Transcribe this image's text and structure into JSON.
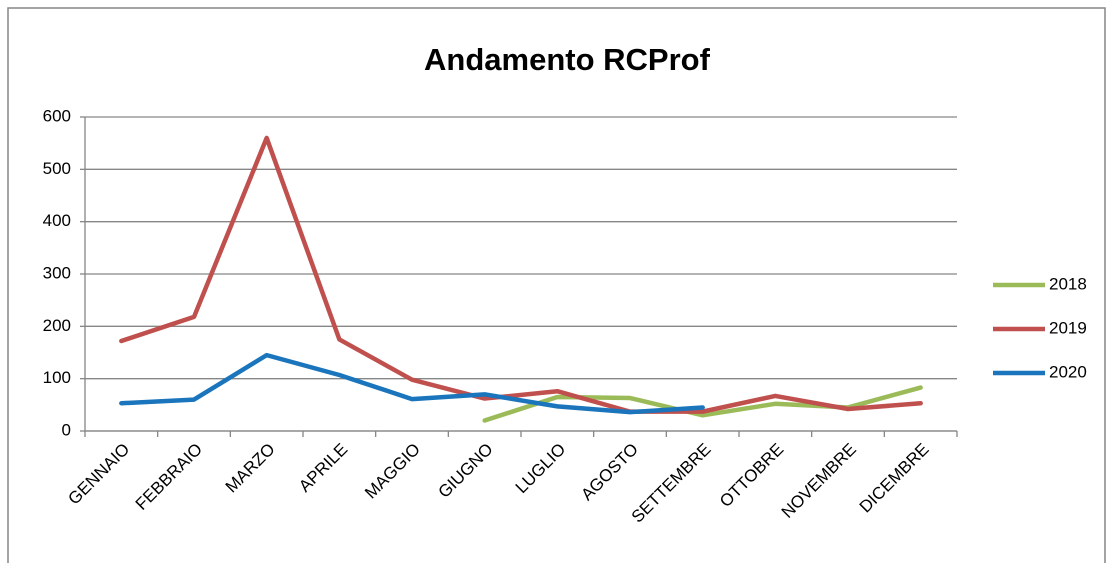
{
  "chart_data": {
    "type": "line",
    "title": "Andamento RCProf",
    "categories": [
      "GENNAIO",
      "FEBBRAIO",
      "MARZO",
      "APRILE",
      "MAGGIO",
      "GIUGNO",
      "LUGLIO",
      "AGOSTO",
      "SETTEMBRE",
      "OTTOBRE",
      "NOVEMBRE",
      "DICEMBRE"
    ],
    "series": [
      {
        "name": "2018",
        "color": "#9bbb59",
        "values": [
          null,
          null,
          null,
          null,
          null,
          20,
          65,
          63,
          30,
          52,
          45,
          83
        ]
      },
      {
        "name": "2019",
        "color": "#c0504d",
        "values": [
          172,
          218,
          560,
          175,
          98,
          62,
          76,
          37,
          37,
          67,
          42,
          53
        ]
      },
      {
        "name": "2020",
        "color": "#1a75bc",
        "values": [
          53,
          60,
          145,
          107,
          61,
          70,
          47,
          36,
          45,
          null,
          null,
          null
        ]
      }
    ],
    "ylim": [
      0,
      600
    ],
    "yticks": [
      0,
      100,
      200,
      300,
      400,
      500,
      600
    ],
    "grid": true,
    "legend": "right"
  }
}
